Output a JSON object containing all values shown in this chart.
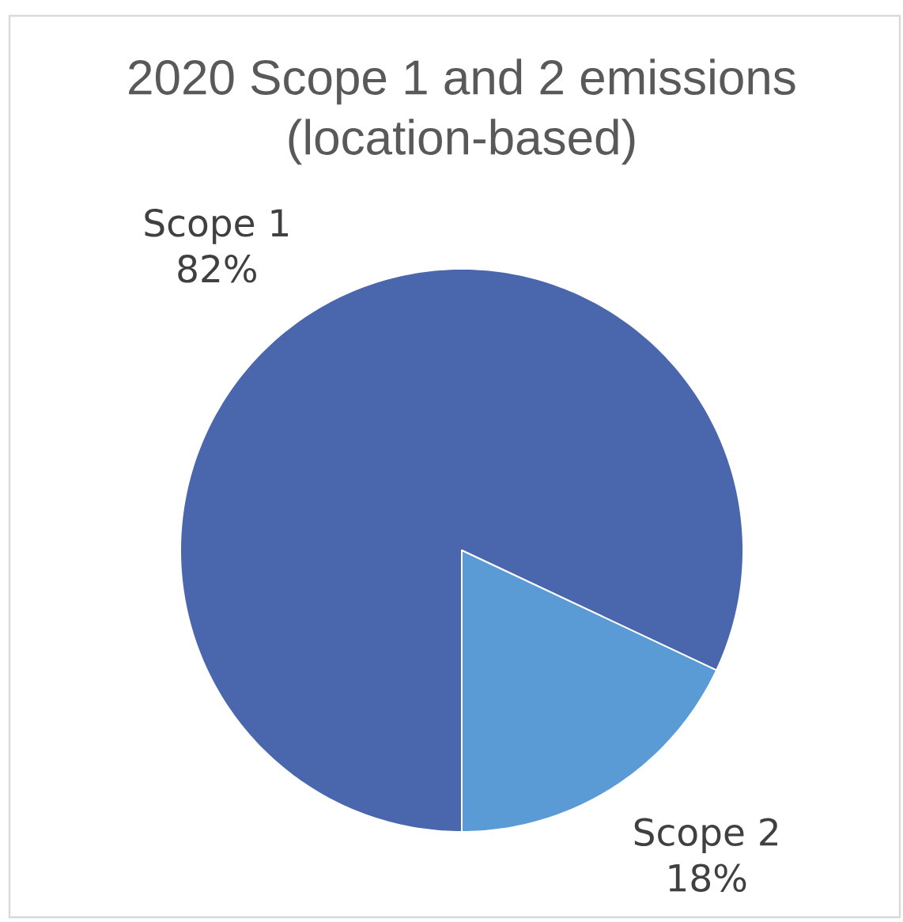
{
  "chart_data": {
    "type": "pie",
    "title": "2020 Scope 1 and 2 emissions (location-based)",
    "categories": [
      "Scope 1",
      "Scope 2"
    ],
    "values": [
      82,
      18
    ],
    "colors": [
      "#4a66ac",
      "#5b9bd5"
    ],
    "value_labels": [
      "82%",
      "18%"
    ]
  }
}
